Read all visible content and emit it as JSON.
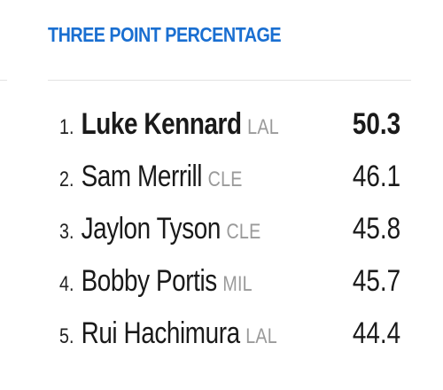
{
  "header": {
    "title": "THREE POINT PERCENTAGE"
  },
  "colors": {
    "title": "#1a6fd1",
    "team": "#9a9a9a",
    "text": "#1a1a1a",
    "divider": "#e3e3e3"
  },
  "leaders": [
    {
      "rank": "1.",
      "name": "Luke Kennard",
      "team": "LAL",
      "value": "50.3"
    },
    {
      "rank": "2.",
      "name": "Sam Merrill",
      "team": "CLE",
      "value": "46.1"
    },
    {
      "rank": "3.",
      "name": "Jaylon Tyson",
      "team": "CLE",
      "value": "45.8"
    },
    {
      "rank": "4.",
      "name": "Bobby Portis",
      "team": "MIL",
      "value": "45.7"
    },
    {
      "rank": "5.",
      "name": "Rui Hachimura",
      "team": "LAL",
      "value": "44.4"
    }
  ]
}
